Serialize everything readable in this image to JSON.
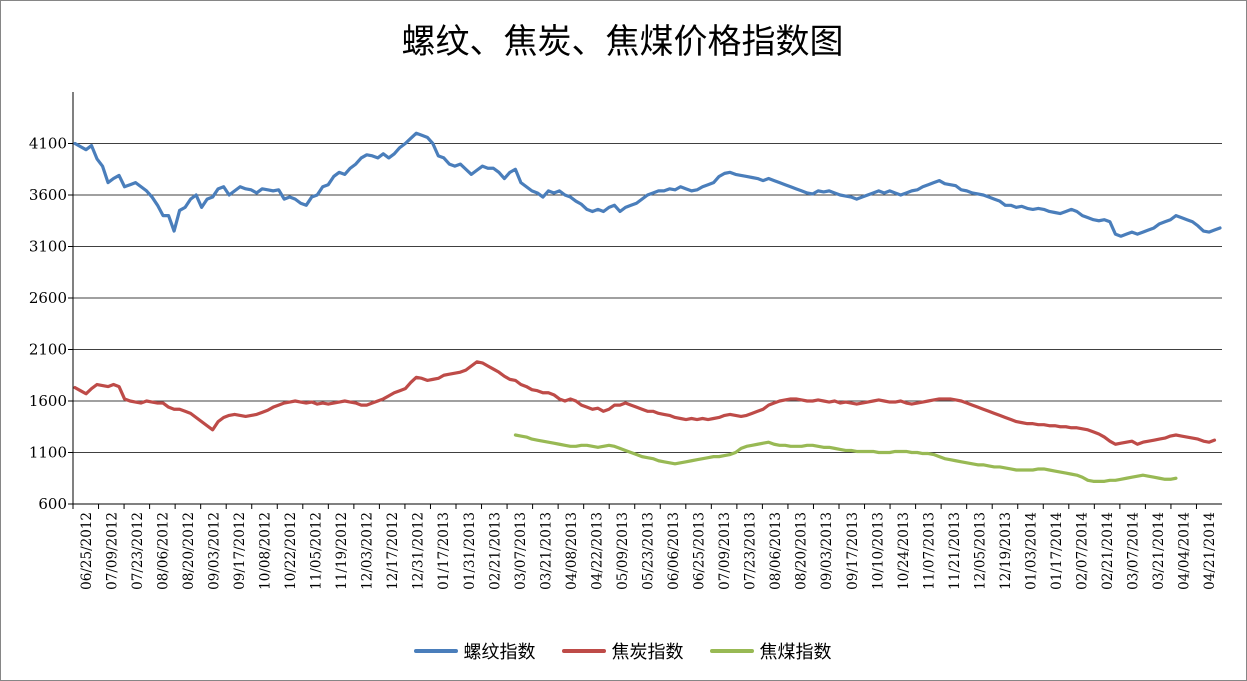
{
  "chart_data": {
    "type": "line",
    "title": "螺纹、焦炭、焦煤价格指数图",
    "xlabel": "",
    "ylabel": "",
    "ylim": [
      600,
      4600
    ],
    "yticks": [
      600,
      1100,
      1600,
      2100,
      2600,
      3100,
      3600,
      4100
    ],
    "grid": true,
    "legend_position": "bottom",
    "x_ticks": [
      "06/25/2012",
      "07/09/2012",
      "07/23/2012",
      "08/06/2012",
      "08/20/2012",
      "09/03/2012",
      "09/17/2012",
      "10/08/2012",
      "10/22/2012",
      "11/05/2012",
      "11/19/2012",
      "12/03/2012",
      "12/17/2012",
      "12/31/2012",
      "01/17/2013",
      "01/31/2013",
      "02/21/2013",
      "03/07/2013",
      "03/21/2013",
      "04/08/2013",
      "04/22/2013",
      "05/09/2013",
      "05/23/2013",
      "06/06/2013",
      "06/25/2013",
      "07/09/2013",
      "07/23/2013",
      "08/06/2013",
      "08/20/2013",
      "09/03/2013",
      "09/17/2013",
      "10/10/2013",
      "10/24/2013",
      "11/07/2013",
      "11/21/2013",
      "12/05/2013",
      "12/19/2013",
      "01/03/2014",
      "01/17/2014",
      "02/07/2014",
      "02/21/2014",
      "03/07/2014",
      "03/21/2014",
      "04/04/2014",
      "04/21/2014"
    ],
    "series": [
      {
        "name": "螺纹指数",
        "color": "#4a7ebb",
        "start": 0,
        "values": [
          4100,
          4070,
          4040,
          4080,
          3950,
          3880,
          3720,
          3760,
          3790,
          3680,
          3700,
          3720,
          3680,
          3640,
          3580,
          3500,
          3400,
          3400,
          3250,
          3450,
          3480,
          3560,
          3600,
          3480,
          3560,
          3580,
          3660,
          3680,
          3600,
          3640,
          3680,
          3660,
          3650,
          3620,
          3660,
          3650,
          3640,
          3650,
          3560,
          3580,
          3560,
          3520,
          3500,
          3580,
          3600,
          3680,
          3700,
          3780,
          3820,
          3800,
          3860,
          3900,
          3960,
          3990,
          3980,
          3960,
          4000,
          3960,
          4000,
          4060,
          4100,
          4150,
          4200,
          4180,
          4160,
          4100,
          3980,
          3960,
          3900,
          3880,
          3900,
          3850,
          3800,
          3840,
          3880,
          3860,
          3860,
          3820,
          3760,
          3820,
          3850,
          3720,
          3680,
          3640,
          3620,
          3580,
          3640,
          3620,
          3640,
          3600,
          3580,
          3540,
          3510,
          3460,
          3440,
          3460,
          3440,
          3480,
          3500,
          3440,
          3480,
          3500,
          3520,
          3560,
          3600,
          3620,
          3640,
          3640,
          3660,
          3650,
          3680,
          3660,
          3640,
          3650,
          3680,
          3700,
          3720,
          3780,
          3810,
          3820,
          3800,
          3790,
          3780,
          3770,
          3760,
          3740,
          3760,
          3740,
          3720,
          3700,
          3680,
          3660,
          3640,
          3620,
          3610,
          3640,
          3630,
          3640,
          3620,
          3600,
          3590,
          3580,
          3560,
          3580,
          3600,
          3620,
          3640,
          3620,
          3640,
          3620,
          3600,
          3620,
          3640,
          3650,
          3680,
          3700,
          3720,
          3740,
          3710,
          3700,
          3690,
          3650,
          3640,
          3620,
          3610,
          3600,
          3580,
          3560,
          3540,
          3500,
          3500,
          3480,
          3490,
          3470,
          3460,
          3470,
          3460,
          3440,
          3430,
          3420,
          3440,
          3460,
          3440,
          3400,
          3380,
          3360,
          3350,
          3360,
          3340,
          3220,
          3200,
          3220,
          3240,
          3220,
          3240,
          3260,
          3280,
          3320,
          3340,
          3360,
          3400,
          3380,
          3360,
          3340,
          3300,
          3250,
          3240,
          3260,
          3280
        ]
      },
      {
        "name": "焦炭指数",
        "color": "#be4b48",
        "start": 0,
        "values": [
          1730,
          1700,
          1670,
          1720,
          1760,
          1750,
          1740,
          1760,
          1740,
          1620,
          1600,
          1590,
          1580,
          1600,
          1590,
          1580,
          1580,
          1540,
          1520,
          1520,
          1500,
          1480,
          1440,
          1400,
          1360,
          1320,
          1400,
          1440,
          1460,
          1470,
          1460,
          1450,
          1460,
          1470,
          1490,
          1510,
          1540,
          1560,
          1580,
          1590,
          1600,
          1590,
          1580,
          1590,
          1570,
          1580,
          1570,
          1580,
          1590,
          1600,
          1590,
          1580,
          1560,
          1560,
          1580,
          1600,
          1620,
          1650,
          1680,
          1700,
          1720,
          1780,
          1830,
          1820,
          1800,
          1810,
          1820,
          1850,
          1860,
          1870,
          1880,
          1900,
          1940,
          1980,
          1970,
          1940,
          1910,
          1880,
          1840,
          1810,
          1800,
          1760,
          1740,
          1710,
          1700,
          1680,
          1680,
          1660,
          1620,
          1600,
          1620,
          1600,
          1560,
          1540,
          1520,
          1530,
          1500,
          1520,
          1560,
          1560,
          1580,
          1560,
          1540,
          1520,
          1500,
          1500,
          1480,
          1470,
          1460,
          1440,
          1430,
          1420,
          1430,
          1420,
          1430,
          1420,
          1430,
          1440,
          1460,
          1470,
          1460,
          1450,
          1460,
          1480,
          1500,
          1520,
          1560,
          1580,
          1600,
          1610,
          1620,
          1620,
          1610,
          1600,
          1600,
          1610,
          1600,
          1590,
          1600,
          1580,
          1590,
          1580,
          1570,
          1580,
          1590,
          1600,
          1610,
          1600,
          1590,
          1590,
          1600,
          1580,
          1570,
          1580,
          1590,
          1600,
          1610,
          1620,
          1620,
          1620,
          1610,
          1600,
          1580,
          1560,
          1540,
          1520,
          1500,
          1480,
          1460,
          1440,
          1420,
          1400,
          1390,
          1380,
          1380,
          1370,
          1370,
          1360,
          1360,
          1350,
          1350,
          1340,
          1340,
          1330,
          1320,
          1300,
          1280,
          1250,
          1210,
          1180,
          1190,
          1200,
          1210,
          1180,
          1200,
          1210,
          1220,
          1230,
          1240,
          1260,
          1270,
          1260,
          1250,
          1240,
          1230,
          1210,
          1200,
          1220
        ]
      },
      {
        "name": "焦煤指数",
        "color": "#98b954",
        "start": 80,
        "values": [
          1270,
          1260,
          1250,
          1230,
          1220,
          1210,
          1200,
          1190,
          1180,
          1170,
          1160,
          1160,
          1170,
          1170,
          1160,
          1150,
          1160,
          1170,
          1160,
          1140,
          1120,
          1100,
          1080,
          1060,
          1050,
          1040,
          1020,
          1010,
          1000,
          990,
          1000,
          1010,
          1020,
          1030,
          1040,
          1050,
          1060,
          1060,
          1070,
          1080,
          1100,
          1140,
          1160,
          1170,
          1180,
          1190,
          1200,
          1180,
          1170,
          1170,
          1160,
          1160,
          1160,
          1170,
          1170,
          1160,
          1150,
          1150,
          1140,
          1130,
          1120,
          1120,
          1110,
          1110,
          1110,
          1110,
          1100,
          1100,
          1100,
          1110,
          1110,
          1110,
          1100,
          1100,
          1090,
          1090,
          1080,
          1060,
          1040,
          1030,
          1020,
          1010,
          1000,
          990,
          980,
          980,
          970,
          960,
          960,
          950,
          940,
          930,
          930,
          930,
          930,
          940,
          940,
          930,
          920,
          910,
          900,
          890,
          880,
          860,
          830,
          820,
          820,
          820,
          830,
          830,
          840,
          850,
          860,
          870,
          880,
          870,
          860,
          850,
          840,
          840,
          850
        ]
      }
    ]
  }
}
